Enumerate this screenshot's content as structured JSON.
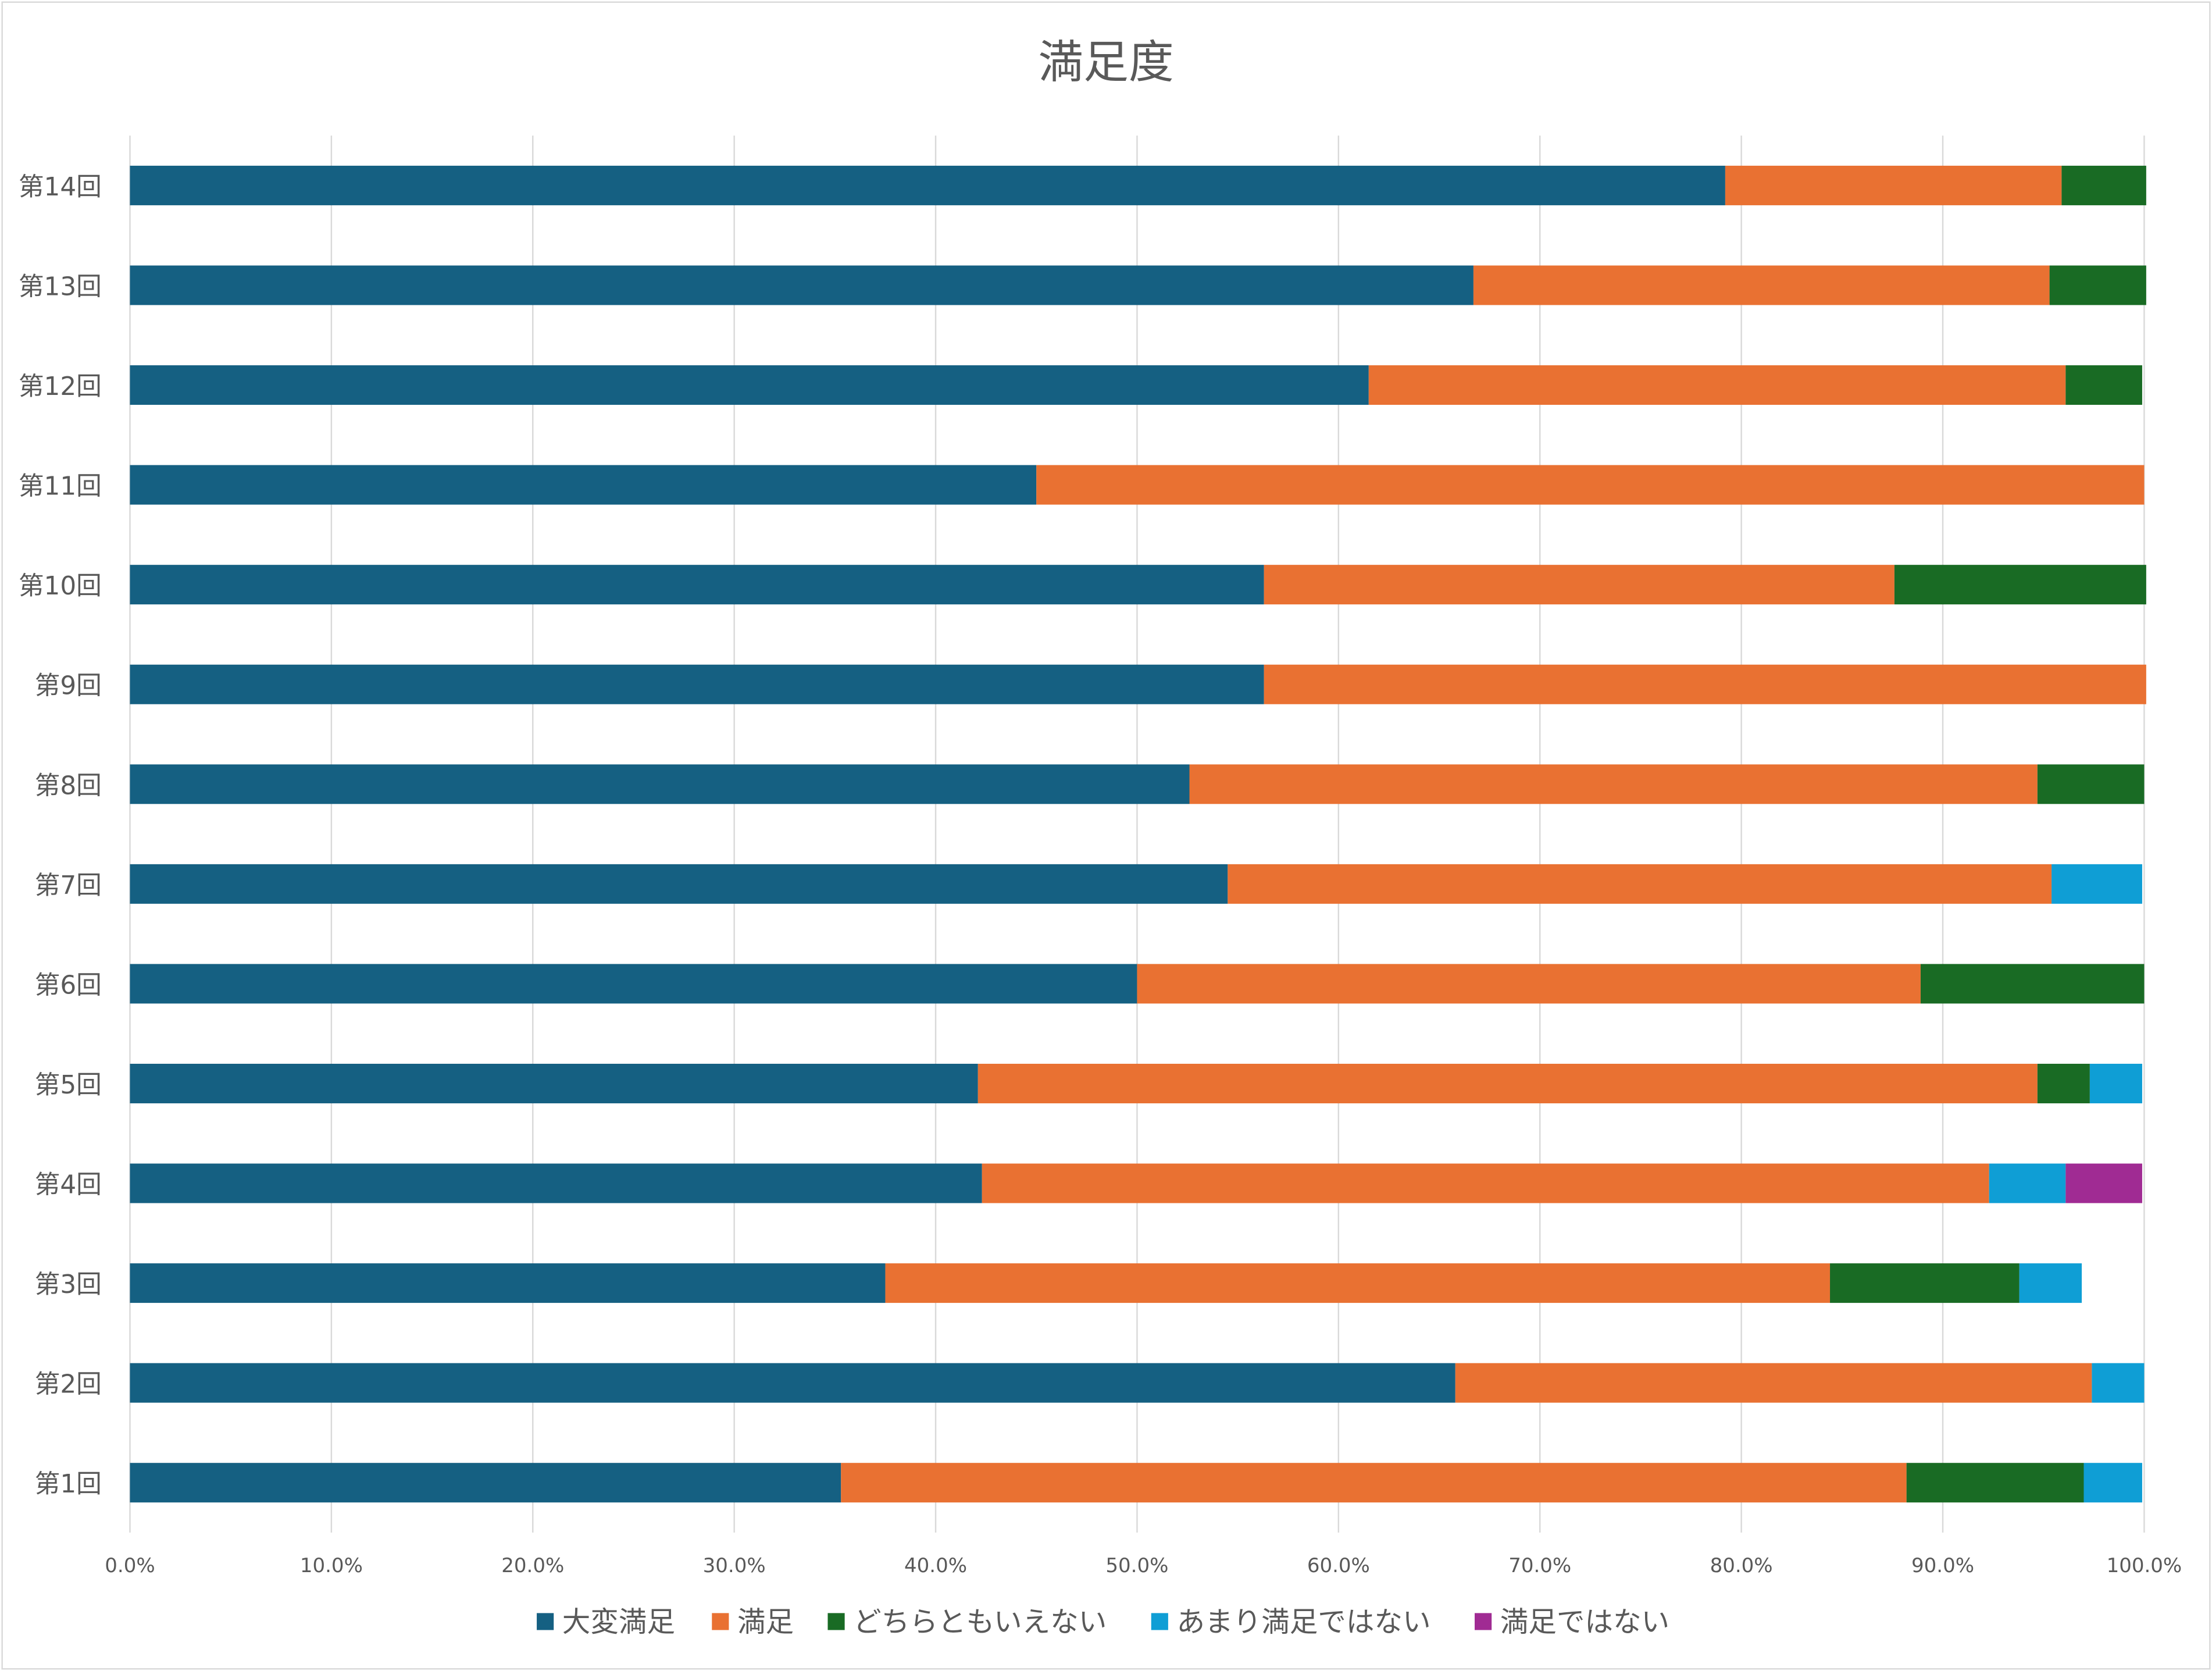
{
  "chart_data": {
    "type": "bar",
    "orientation": "horizontal",
    "stacked": true,
    "title": "満足度",
    "categories": [
      "第1回",
      "第2回",
      "第3回",
      "第4回",
      "第5回",
      "第6回",
      "第7回",
      "第8回",
      "第9回",
      "第10回",
      "第11回",
      "第12回",
      "第13回",
      "第14回"
    ],
    "series": [
      {
        "name": "大変満足",
        "color": "#156082",
        "values": [
          35.3,
          65.8,
          37.5,
          42.3,
          42.1,
          50.0,
          54.5,
          52.6,
          56.3,
          56.3,
          45.0,
          61.5,
          66.7,
          79.2
        ]
      },
      {
        "name": "満足",
        "color": "#E97132",
        "values": [
          52.9,
          31.6,
          46.9,
          50.0,
          52.6,
          38.9,
          40.9,
          42.1,
          43.8,
          31.3,
          55.0,
          34.6,
          28.6,
          16.7
        ]
      },
      {
        "name": "どちらともいえない",
        "color": "#196B24",
        "values": [
          8.8,
          0,
          9.4,
          0,
          2.6,
          11.1,
          0,
          5.3,
          0,
          12.5,
          0,
          3.8,
          4.8,
          4.2
        ]
      },
      {
        "name": "あまり満足ではない",
        "color": "#0F9ED5",
        "values": [
          2.9,
          2.6,
          3.1,
          3.8,
          2.6,
          0,
          4.5,
          0,
          0,
          0,
          0,
          0,
          0,
          0
        ]
      },
      {
        "name": "満足ではない",
        "color": "#A02B93",
        "values": [
          0,
          0,
          0,
          3.8,
          0,
          0,
          0,
          0,
          0,
          0,
          0,
          0,
          0,
          0
        ]
      }
    ],
    "xlim": [
      0,
      100
    ],
    "x_ticks": [
      "0.0%",
      "10.0%",
      "20.0%",
      "30.0%",
      "40.0%",
      "50.0%",
      "60.0%",
      "70.0%",
      "80.0%",
      "90.0%",
      "100.0%"
    ],
    "grid": "vertical",
    "legend": "bottom"
  }
}
